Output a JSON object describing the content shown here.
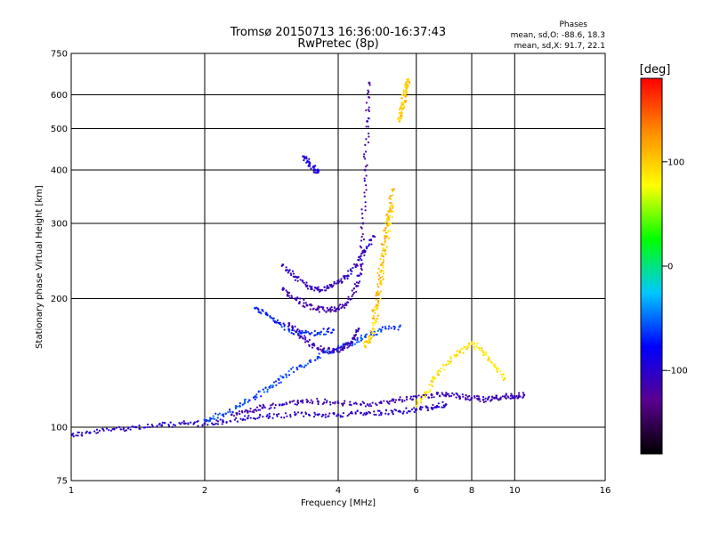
{
  "chart_data": {
    "type": "scatter",
    "title": "Tromsø 20150713 16:36:00-16:37:43",
    "subtitle": "RwPretec (8p)",
    "xlabel": "Frequency [MHz]",
    "ylabel": "Stationary phase Virtual Height [km]",
    "x_scale": "log",
    "y_scale": "log",
    "xlim": [
      1,
      16
    ],
    "ylim": [
      75,
      750
    ],
    "x_ticks": [
      1,
      2,
      4,
      6,
      8,
      10,
      16
    ],
    "y_ticks": [
      75,
      100,
      200,
      300,
      400,
      500,
      600,
      750
    ],
    "grid": true,
    "stats": {
      "title": "Phases",
      "line_o": "mean, sd,O: -88.6, 18.3",
      "line_x": "mean, sd,X:  91.7, 22.1"
    },
    "colorbar": {
      "label": "[deg]",
      "min": -180,
      "max": 180,
      "ticks": [
        100,
        0,
        -100
      ],
      "colors": [
        "#000000",
        "#5a0090",
        "#0000ff",
        "#00c8ff",
        "#00ff00",
        "#ffff00",
        "#ff8c00",
        "#ff0000"
      ]
    },
    "series": [
      {
        "x": [
          1.0,
          1.1,
          1.25,
          1.4,
          1.6,
          1.8,
          2.0,
          2.2,
          2.5,
          2.8,
          3.2,
          3.6,
          4.0,
          4.5,
          5.0,
          5.5,
          6.0,
          6.5,
          7.0
        ],
        "y": [
          96,
          97,
          99,
          100,
          101,
          102,
          102,
          103,
          105,
          106,
          107,
          107,
          107,
          108,
          108,
          109,
          110,
          111,
          113
        ],
        "phase": -100
      },
      {
        "x": [
          2.3,
          2.5,
          2.7,
          3.0,
          3.3,
          3.6,
          4.0,
          4.5,
          5.0,
          5.5,
          6.0,
          6.5,
          7.0,
          7.5,
          8.0,
          8.5,
          9.0,
          9.5,
          10.0,
          10.5
        ],
        "y": [
          107,
          109,
          111,
          113,
          115,
          115,
          114,
          113,
          114,
          116,
          118,
          119,
          119,
          118,
          117,
          116,
          117,
          118,
          118,
          119
        ],
        "phase": -110
      },
      {
        "x": [
          2.0,
          2.2,
          2.4,
          2.6,
          2.8,
          3.0,
          3.3,
          3.6,
          4.0,
          4.3,
          4.6,
          5.0,
          5.5
        ],
        "y": [
          104,
          107,
          112,
          118,
          124,
          131,
          139,
          146,
          153,
          158,
          163,
          169,
          172
        ],
        "phase": -60
      },
      {
        "x": [
          2.6,
          2.75,
          2.9,
          3.1,
          3.3,
          3.6,
          3.9
        ],
        "y": [
          190,
          185,
          176,
          169,
          166,
          166,
          169
        ],
        "phase": -70
      },
      {
        "x": [
          3.0,
          3.2,
          3.4,
          3.6,
          3.8,
          4.0,
          4.2,
          4.4,
          4.5,
          4.55,
          4.6,
          4.65,
          4.7
        ],
        "y": [
          210,
          200,
          193,
          189,
          188,
          190,
          196,
          214,
          240,
          300,
          400,
          520,
          640
        ],
        "phase": -115
      },
      {
        "x": [
          3.1,
          3.3,
          3.5,
          3.7,
          3.9,
          4.1,
          4.3,
          4.45
        ],
        "y": [
          175,
          163,
          156,
          152,
          151,
          153,
          158,
          170
        ],
        "phase": -110
      },
      {
        "x": [
          3.0,
          3.2,
          3.4,
          3.6,
          3.8,
          4.0,
          4.2,
          4.4,
          4.6,
          4.8
        ],
        "y": [
          240,
          225,
          214,
          210,
          212,
          218,
          226,
          240,
          258,
          280
        ],
        "phase": -105
      },
      {
        "x": [
          3.35,
          3.45,
          3.55,
          3.6
        ],
        "y": [
          430,
          415,
          400,
          395
        ],
        "phase": -95
      },
      {
        "x": [
          4.6,
          4.7,
          4.8,
          4.9,
          5.0,
          5.1,
          5.2,
          5.3
        ],
        "y": [
          155,
          160,
          170,
          190,
          220,
          260,
          300,
          330
        ],
        "phase": 95
      },
      {
        "x": [
          4.8,
          4.9,
          5.0,
          5.1,
          5.2,
          5.3
        ],
        "y": [
          180,
          205,
          240,
          280,
          320,
          360
        ],
        "phase": 110
      },
      {
        "x": [
          5.5,
          5.55,
          5.6,
          5.65,
          5.7,
          5.75
        ],
        "y": [
          520,
          545,
          570,
          600,
          630,
          650
        ],
        "phase": 100
      },
      {
        "x": [
          6.0,
          6.3,
          6.6,
          7.0,
          7.5,
          8.0,
          8.5,
          9.0,
          9.5
        ],
        "y": [
          112,
          120,
          130,
          140,
          150,
          158,
          150,
          140,
          130
        ],
        "phase": 90
      }
    ]
  }
}
